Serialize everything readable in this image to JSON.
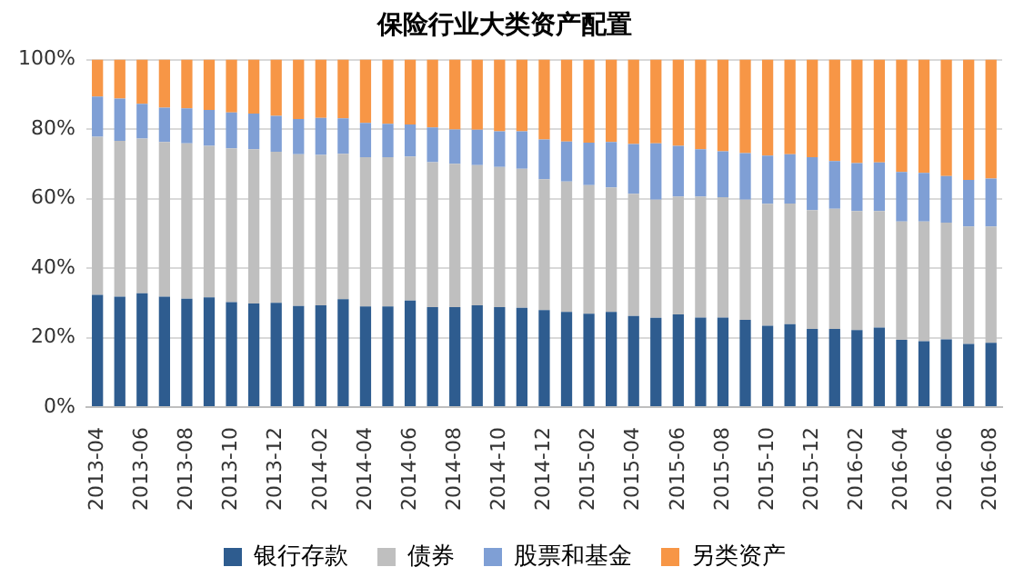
{
  "chart_data": {
    "type": "bar",
    "title": "保险行业大类资产配置",
    "stacked": true,
    "categories": [
      "2013-04",
      null,
      "2013-06",
      null,
      "2013-08",
      null,
      "2013-10",
      null,
      "2013-12",
      null,
      "2014-02",
      null,
      "2014-04",
      null,
      "2014-06",
      null,
      "2014-08",
      null,
      "2014-10",
      null,
      "2014-12",
      null,
      "2015-02",
      null,
      "2015-04",
      null,
      "2015-06",
      null,
      "2015-08",
      null,
      "2015-10",
      null,
      "2015-12",
      null,
      "2016-02",
      null,
      "2016-04",
      null,
      "2016-06",
      null,
      "2016-08"
    ],
    "series": [
      {
        "name": "银行存款",
        "color": "#2e5c8f",
        "values": [
          32.3,
          31.8,
          32.8,
          31.8,
          31.2,
          31.6,
          30.2,
          29.8,
          30.0,
          29.1,
          29.3,
          31.1,
          29.0,
          29.0,
          30.7,
          28.8,
          28.8,
          29.3,
          28.8,
          28.6,
          27.9,
          27.4,
          26.9,
          27.4,
          26.2,
          25.7,
          26.7,
          25.8,
          25.8,
          25.1,
          23.4,
          23.9,
          22.5,
          22.5,
          22.2,
          22.9,
          19.4,
          19.0,
          19.5,
          18.2,
          18.5
        ]
      },
      {
        "name": "债券",
        "color": "#bfbfbf",
        "values": [
          45.5,
          44.8,
          44.5,
          44.5,
          44.7,
          43.6,
          44.3,
          44.4,
          43.5,
          43.7,
          43.3,
          41.8,
          42.9,
          42.9,
          41.4,
          41.7,
          41.2,
          40.3,
          40.3,
          40.0,
          37.7,
          37.5,
          37.0,
          35.8,
          35.2,
          34.0,
          33.9,
          34.8,
          34.6,
          34.6,
          35.1,
          34.7,
          34.2,
          34.6,
          34.2,
          33.5,
          34.0,
          34.4,
          33.6,
          33.8,
          33.5
        ]
      },
      {
        "name": "股票和基金",
        "color": "#7f9fd5",
        "values": [
          11.6,
          12.2,
          10.0,
          9.9,
          10.1,
          10.3,
          10.3,
          10.3,
          10.3,
          10.1,
          10.6,
          10.2,
          9.9,
          9.6,
          9.2,
          10.0,
          9.9,
          10.2,
          10.3,
          10.8,
          11.4,
          11.5,
          12.2,
          13.1,
          14.3,
          16.2,
          14.6,
          13.6,
          13.2,
          13.4,
          13.9,
          14.2,
          15.2,
          13.7,
          13.8,
          14.0,
          14.3,
          14.0,
          13.4,
          13.4,
          13.8
        ]
      },
      {
        "name": "另类资产",
        "color": "#f79646",
        "values": [
          10.6,
          11.2,
          12.7,
          13.8,
          14.0,
          14.5,
          15.2,
          15.5,
          16.2,
          17.1,
          16.8,
          16.9,
          18.2,
          18.5,
          18.7,
          19.5,
          20.1,
          20.2,
          20.6,
          20.6,
          23.0,
          23.6,
          23.9,
          23.7,
          24.3,
          24.1,
          24.8,
          25.8,
          26.4,
          26.9,
          27.6,
          27.2,
          28.1,
          29.2,
          29.8,
          29.6,
          32.3,
          32.6,
          33.5,
          34.6,
          34.2
        ]
      }
    ],
    "ylim": [
      0,
      100
    ],
    "yticks": [
      {
        "value": 0,
        "label": "0%"
      },
      {
        "value": 20,
        "label": "20%"
      },
      {
        "value": 40,
        "label": "40%"
      },
      {
        "value": 60,
        "label": "60%"
      },
      {
        "value": 80,
        "label": "80%"
      },
      {
        "value": 100,
        "label": "100%"
      }
    ],
    "grid": "y",
    "legend": "bottom"
  }
}
